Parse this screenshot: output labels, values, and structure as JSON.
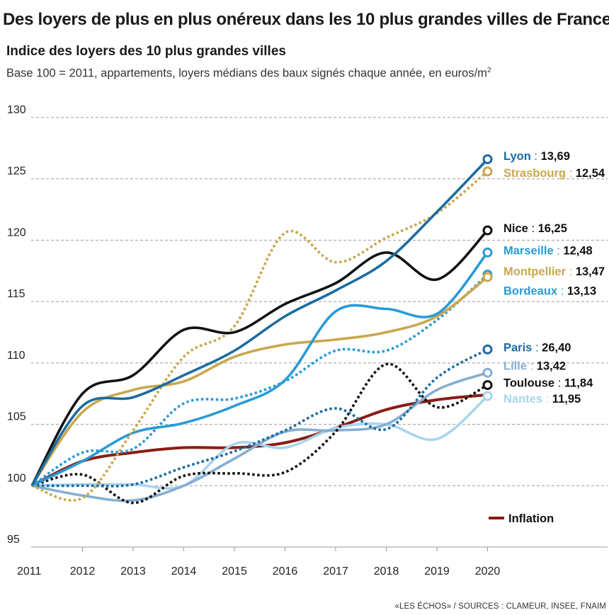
{
  "chart_data": {
    "type": "line",
    "title": "Des loyers de plus en plus onéreux dans les 10 plus grandes villes de France",
    "subtitle": "Indice des loyers des 10 plus grandes villes",
    "note_main": "Base 100 = 2011, appartements, loyers médians des baux signés chaque année, en euros/m",
    "note_sup": "2",
    "source": "«LES ÉCHOS» / SOURCES : CLAMEUR, INSEE, FNAIM",
    "xlabel": "",
    "ylabel": "",
    "ylim": [
      95,
      130
    ],
    "yticks": [
      95,
      100,
      105,
      110,
      115,
      120,
      125,
      130
    ],
    "xticks": [
      "2011",
      "2012",
      "2013",
      "2014",
      "2015",
      "2016",
      "2017",
      "2018",
      "2019",
      "2020"
    ],
    "x": [
      2011,
      2012,
      2013,
      2014,
      2015,
      2016,
      2017,
      2018,
      2019,
      2020
    ],
    "grid": true,
    "legend": {
      "position": "bottom-right",
      "entries": [
        "Inflation"
      ]
    },
    "series": [
      {
        "name": "Lyon",
        "value_label": "13,69",
        "color": "#1c6ca0",
        "dash": false,
        "marker": true,
        "label_y": 126.9,
        "values": [
          100,
          106.5,
          107.2,
          109,
          111,
          113.8,
          115.9,
          118.3,
          122.3,
          126.6
        ]
      },
      {
        "name": "Strasbourg",
        "value_label": "12,54",
        "color": "#c9a84c",
        "dash": true,
        "marker": true,
        "label_y": 125.5,
        "values": [
          100,
          99,
          104.5,
          110.5,
          113,
          120.6,
          118.2,
          120.2,
          122.2,
          125.6
        ]
      },
      {
        "name": "Nice",
        "value_label": "16,25",
        "color": "#111111",
        "dash": false,
        "marker": true,
        "label_y": 121.0,
        "values": [
          100,
          107.5,
          109,
          112.7,
          112.5,
          114.8,
          116.5,
          119,
          116.8,
          120.8
        ]
      },
      {
        "name": "Marseille",
        "value_label": "12,48",
        "color": "#2a9ad6",
        "dash": false,
        "marker": true,
        "label_y": 119.2,
        "values": [
          100,
          102,
          104.3,
          105.1,
          106.5,
          108.6,
          114.2,
          114.4,
          114,
          119
        ]
      },
      {
        "name": "Montpellier",
        "value_label": "13,47",
        "color": "#c9a84c",
        "dash": false,
        "marker": true,
        "label_y": 117.5,
        "values": [
          100,
          106,
          107.8,
          108.5,
          110.5,
          111.5,
          111.9,
          112.5,
          113.8,
          117
        ]
      },
      {
        "name": "Bordeaux",
        "value_label": "13,13",
        "color": "#2a9ad6",
        "dash": true,
        "marker": true,
        "label_y": 115.9,
        "values": [
          100,
          102.7,
          103,
          106.7,
          107.1,
          108.5,
          111,
          111,
          113.5,
          117.2
        ]
      },
      {
        "name": "Paris",
        "value_label": "26,40",
        "color": "#1c6ca0",
        "dash": true,
        "marker": true,
        "label_y": 111.3,
        "values": [
          100,
          100,
          100.1,
          101.5,
          102.8,
          104.5,
          106.3,
          104.6,
          108.8,
          111.1
        ]
      },
      {
        "name": "Lille",
        "value_label": "13,42",
        "color": "#86aed0",
        "dash": false,
        "marker": true,
        "label_y": 109.8,
        "values": [
          100,
          99.2,
          98.8,
          100,
          102.2,
          104.4,
          104.5,
          105,
          107.8,
          109.2
        ]
      },
      {
        "name": "Toulouse",
        "value_label": "11,84",
        "color": "#111111",
        "dash": true,
        "marker": true,
        "label_y": 108.4,
        "values": [
          100,
          100.9,
          98.6,
          100.8,
          101,
          101.1,
          104.4,
          109.9,
          106.4,
          108.2
        ]
      },
      {
        "name": "Nantes",
        "value_label": "11,95",
        "color": "#a9d4ee",
        "dash": false,
        "marker": true,
        "label_y": 107.1,
        "values": [
          100,
          100.1,
          100.1,
          100,
          103.4,
          103.1,
          104.7,
          105,
          103.8,
          107.3
        ]
      },
      {
        "name": "Inflation",
        "value_label": "",
        "color": "#8a1c14",
        "dash": false,
        "marker": false,
        "label_y": null,
        "values": [
          100,
          102,
          102.7,
          103.1,
          103.1,
          103.5,
          104.7,
          106.2,
          107,
          107.4
        ]
      }
    ]
  }
}
